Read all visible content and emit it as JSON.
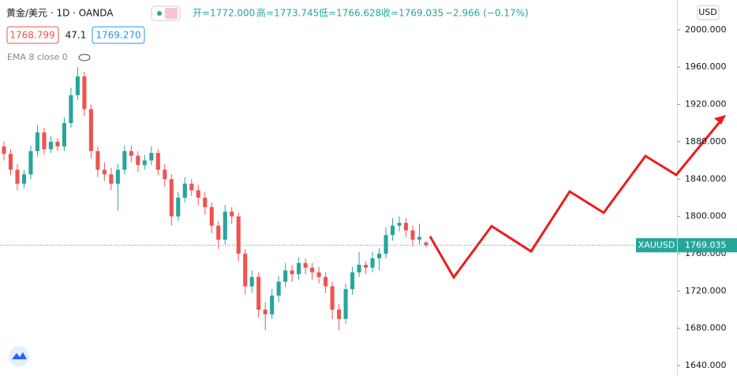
{
  "chart_data": {
    "type": "candlestick",
    "header": {
      "symbol": "黄金/美元 · 1D · OANDA",
      "open": "开=1772.000",
      "high": "高=1773.745",
      "low": "低=1766.628",
      "close": "收=1769.035",
      "change": "−2.966 (−0.17%)"
    },
    "boxes": {
      "sell": "1768.799",
      "spread": "47.1",
      "buy": "1769.270"
    },
    "indicator": "EMA 8 close 0",
    "currency": "USD",
    "last_symbol": "XAUUSD",
    "last_price": 1769.035,
    "up_color": "#26a69a",
    "down_color": "#ef5350",
    "ylim": [
      1629,
      2032
    ],
    "yticks": [
      {
        "value": 1640,
        "label": "1640.000"
      },
      {
        "value": 1680,
        "label": "1680.000"
      },
      {
        "value": 1720,
        "label": "1720.000"
      },
      {
        "value": 1760,
        "label": "1760.000"
      },
      {
        "value": 1800,
        "label": "1800.000"
      },
      {
        "value": 1840,
        "label": "1840.000"
      },
      {
        "value": 1880,
        "label": "1880.000"
      },
      {
        "value": 1920,
        "label": "1920.000"
      },
      {
        "value": 1960,
        "label": "1960.000"
      },
      {
        "value": 2000,
        "label": "2000.000"
      }
    ],
    "ohlc": [
      [
        1875,
        1880,
        1860,
        1867
      ],
      [
        1867,
        1872,
        1844,
        1850
      ],
      [
        1850,
        1856,
        1828,
        1835
      ],
      [
        1835,
        1850,
        1830,
        1845
      ],
      [
        1845,
        1876,
        1840,
        1870
      ],
      [
        1870,
        1898,
        1864,
        1890
      ],
      [
        1890,
        1895,
        1866,
        1872
      ],
      [
        1872,
        1886,
        1868,
        1880
      ],
      [
        1880,
        1884,
        1870,
        1875
      ],
      [
        1875,
        1906,
        1870,
        1900
      ],
      [
        1900,
        1938,
        1895,
        1930
      ],
      [
        1930,
        1960,
        1925,
        1950
      ],
      [
        1950,
        1955,
        1908,
        1915
      ],
      [
        1915,
        1920,
        1862,
        1870
      ],
      [
        1870,
        1875,
        1842,
        1850
      ],
      [
        1850,
        1858,
        1838,
        1845
      ],
      [
        1845,
        1852,
        1828,
        1835
      ],
      [
        1835,
        1856,
        1806,
        1850
      ],
      [
        1850,
        1876,
        1845,
        1870
      ],
      [
        1870,
        1876,
        1858,
        1865
      ],
      [
        1865,
        1870,
        1848,
        1855
      ],
      [
        1855,
        1866,
        1850,
        1860
      ],
      [
        1860,
        1875,
        1855,
        1868
      ],
      [
        1868,
        1872,
        1844,
        1850
      ],
      [
        1850,
        1856,
        1832,
        1840
      ],
      [
        1840,
        1845,
        1790,
        1800
      ],
      [
        1800,
        1826,
        1795,
        1820
      ],
      [
        1820,
        1842,
        1815,
        1835
      ],
      [
        1835,
        1840,
        1822,
        1828
      ],
      [
        1828,
        1834,
        1812,
        1820
      ],
      [
        1820,
        1826,
        1802,
        1810
      ],
      [
        1810,
        1815,
        1782,
        1790
      ],
      [
        1790,
        1795,
        1765,
        1775
      ],
      [
        1775,
        1812,
        1770,
        1805
      ],
      [
        1805,
        1810,
        1792,
        1800
      ],
      [
        1800,
        1804,
        1752,
        1760
      ],
      [
        1760,
        1765,
        1716,
        1725
      ],
      [
        1725,
        1742,
        1718,
        1735
      ],
      [
        1735,
        1740,
        1692,
        1700
      ],
      [
        1700,
        1708,
        1678,
        1695
      ],
      [
        1695,
        1722,
        1690,
        1715
      ],
      [
        1715,
        1736,
        1708,
        1730
      ],
      [
        1730,
        1750,
        1724,
        1742
      ],
      [
        1742,
        1748,
        1730,
        1738
      ],
      [
        1738,
        1756,
        1732,
        1750
      ],
      [
        1750,
        1755,
        1738,
        1745
      ],
      [
        1745,
        1750,
        1732,
        1740
      ],
      [
        1740,
        1746,
        1728,
        1735
      ],
      [
        1735,
        1740,
        1718,
        1725
      ],
      [
        1725,
        1730,
        1690,
        1700
      ],
      [
        1700,
        1706,
        1678,
        1690
      ],
      [
        1690,
        1728,
        1685,
        1722
      ],
      [
        1722,
        1746,
        1716,
        1740
      ],
      [
        1740,
        1762,
        1735,
        1748
      ],
      [
        1748,
        1752,
        1738,
        1745
      ],
      [
        1745,
        1762,
        1740,
        1755
      ],
      [
        1755,
        1766,
        1742,
        1760
      ],
      [
        1760,
        1788,
        1755,
        1780
      ],
      [
        1780,
        1798,
        1774,
        1790
      ],
      [
        1790,
        1800,
        1784,
        1793
      ],
      [
        1793,
        1798,
        1778,
        1785
      ],
      [
        1785,
        1790,
        1768,
        1775
      ],
      [
        1775,
        1792,
        1770,
        1778
      ],
      [
        1772,
        1773.745,
        1766.628,
        1769.035
      ]
    ]
  }
}
